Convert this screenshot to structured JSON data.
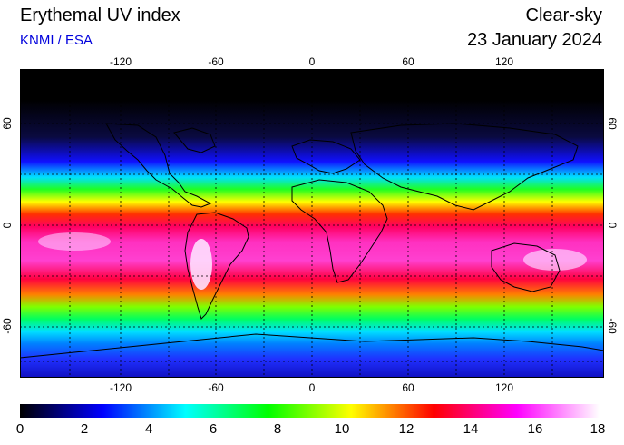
{
  "header": {
    "title": "Erythemal UV index",
    "credit": "KNMI / ESA",
    "sky_type": "Clear-sky",
    "date": "23 January 2024"
  },
  "axes": {
    "longitude_ticks": [
      "-120",
      "-60",
      "0",
      "60",
      "120"
    ],
    "latitude_ticks": [
      "60",
      "0",
      "-60"
    ]
  },
  "colorbar": {
    "min": 0,
    "max": 18,
    "ticks": [
      "0",
      "2",
      "4",
      "6",
      "8",
      "10",
      "12",
      "14",
      "16",
      "18"
    ],
    "colors": [
      "#000000",
      "#0000ff",
      "#00ffff",
      "#00ff00",
      "#ffff00",
      "#ff0000",
      "#ff00ff",
      "#ffffff"
    ]
  }
}
